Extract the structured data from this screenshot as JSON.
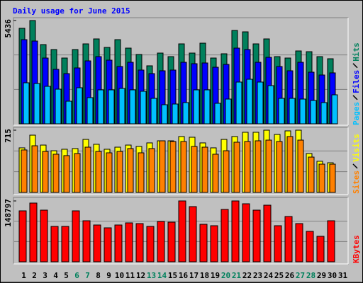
{
  "chart_data": {
    "type": "bar",
    "title": "Daily usage for June 2015",
    "categories": [
      "1",
      "2",
      "3",
      "4",
      "5",
      "6",
      "7",
      "8",
      "9",
      "10",
      "11",
      "12",
      "13",
      "14",
      "15",
      "16",
      "17",
      "18",
      "19",
      "20",
      "21",
      "22",
      "23",
      "24",
      "25",
      "26",
      "27",
      "28",
      "29",
      "30",
      "31"
    ],
    "category_colors": [
      "#000000",
      "#000000",
      "#000000",
      "#000000",
      "#000000",
      "#00805c",
      "#00805c",
      "#000000",
      "#000000",
      "#000000",
      "#000000",
      "#000000",
      "#00805c",
      "#00805c",
      "#000000",
      "#000000",
      "#000000",
      "#000000",
      "#000000",
      "#00805c",
      "#00805c",
      "#000000",
      "#000000",
      "#000000",
      "#000000",
      "#000000",
      "#00805c",
      "#00805c",
      "#000000",
      "#000000",
      "#000000"
    ],
    "panels": [
      {
        "ylim": [
          0,
          5436
        ],
        "yticks": [
          5436
        ],
        "series": [
          {
            "name": "Hits",
            "color": "#00805c",
            "values": [
              5026,
              5436,
              4170,
              3909,
              3462,
              3909,
              4207,
              4468,
              4021,
              4430,
              3984,
              3649,
              3053,
              3723,
              3537,
              4207,
              3723,
              4244,
              3462,
              3686,
              4914,
              4840,
              4207,
              4468,
              3537,
              3462,
              3835,
              3797,
              3537,
              3425,
              null
            ]
          },
          {
            "name": "Files",
            "color": "#0000ff",
            "values": [
              4430,
              4356,
              3462,
              2867,
              2643,
              2941,
              3313,
              3537,
              3351,
              3016,
              3239,
              2829,
              2643,
              2792,
              2829,
              3239,
              3165,
              3202,
              2978,
              3127,
              3984,
              3909,
              3239,
              3500,
              3016,
              2792,
              3239,
              2718,
              2569,
              2681,
              null
            ]
          },
          {
            "name": "Pages",
            "color": "#00c0ff",
            "values": [
              2159,
              2122,
              1973,
              1824,
              1191,
              1899,
              1378,
              1787,
              1787,
              1862,
              1787,
              1713,
              1340,
              1005,
              1042,
              1117,
              1787,
              1787,
              1080,
              1303,
              2197,
              2345,
              2197,
              2010,
              1340,
              1340,
              1303,
              1229,
              1117,
              1526,
              null
            ]
          }
        ]
      },
      {
        "ylim": [
          0,
          715
        ],
        "yticks": [
          715
        ],
        "series": [
          {
            "name": "Visits",
            "color": "#ffff00",
            "values": [
              512,
              658,
              544,
              479,
              496,
              504,
              609,
              553,
              496,
              520,
              544,
              528,
              569,
              593,
              593,
              642,
              634,
              569,
              512,
              609,
              642,
              691,
              691,
              715,
              666,
              707,
              715,
              447,
              358,
              341,
              null
            ]
          },
          {
            "name": "Sites",
            "color": "#ff8000",
            "values": [
              488,
              536,
              471,
              439,
              423,
              447,
              520,
              471,
              455,
              471,
              504,
              455,
              504,
              593,
              585,
              585,
              528,
              520,
              439,
              479,
              577,
              585,
              593,
              601,
              585,
              642,
              601,
              406,
              325,
              325,
              null
            ]
          }
        ]
      },
      {
        "ylim": [
          0,
          148797
        ],
        "yticks": [
          148797
        ],
        "series": [
          {
            "name": "KBytes",
            "color": "#ff0000",
            "values": [
              124574,
              143607,
              126304,
              86510,
              86510,
              124574,
              100352,
              89970,
              83050,
              89970,
              95161,
              93431,
              86510,
              98621,
              96891,
              148797,
              134956,
              91701,
              88240,
              128035,
              148797,
              141877,
              126304,
              138416,
              88240,
              110733,
              93431,
              74399,
              62287,
              100352,
              null
            ]
          }
        ]
      }
    ]
  }
}
